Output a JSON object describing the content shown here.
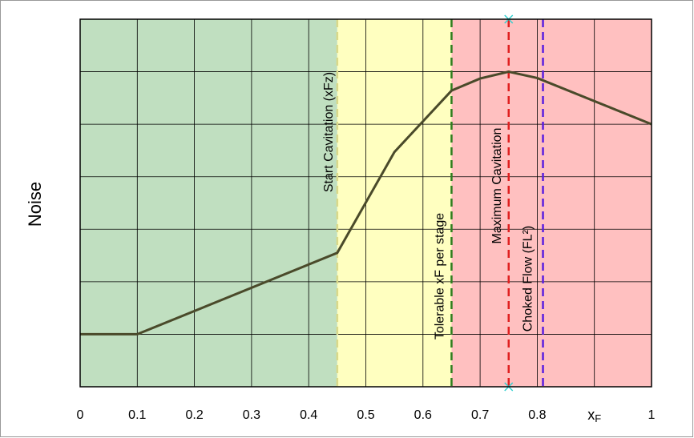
{
  "chart_data": {
    "type": "line",
    "y_label": "Noise",
    "xlim": [
      0,
      1
    ],
    "xticks": [
      0,
      0.1,
      0.2,
      0.3,
      0.4,
      0.5,
      0.6,
      0.7,
      0.8,
      {
        "value": 0.9,
        "label": "xF"
      },
      1
    ],
    "ylim": [
      0,
      7
    ],
    "yticks": [
      0,
      1,
      2,
      3,
      4,
      5,
      6,
      7
    ],
    "show_ytick_labels": false,
    "grid": true,
    "regions": [
      {
        "from": 0,
        "to": 0.45,
        "color": "#c0dfc0"
      },
      {
        "from": 0.45,
        "to": 0.65,
        "color": "#ffffc0"
      },
      {
        "from": 0.65,
        "to": 1,
        "color": "#ffc0c0"
      }
    ],
    "markers": [
      {
        "x": 0.45,
        "label": "Start Cavitation (xFz)",
        "color": "#d9d98a"
      },
      {
        "x": 0.65,
        "label": "Tolerable xF per stage",
        "color": "#2e7d1e"
      },
      {
        "x": 0.75,
        "label": "Maximum Cavitation",
        "color": "#e02020"
      },
      {
        "x": 0.81,
        "label": "Choked Flow (FL²)",
        "color": "#5a1ee0"
      }
    ],
    "series": [
      {
        "color": "#4a4a2a",
        "x": [
          0,
          0.1,
          0.45,
          0.55,
          0.65,
          0.7,
          0.75,
          0.8,
          1
        ],
        "values": [
          1.0,
          1.0,
          2.55,
          4.47,
          5.64,
          5.87,
          6.0,
          5.88,
          5.0
        ]
      }
    ]
  }
}
